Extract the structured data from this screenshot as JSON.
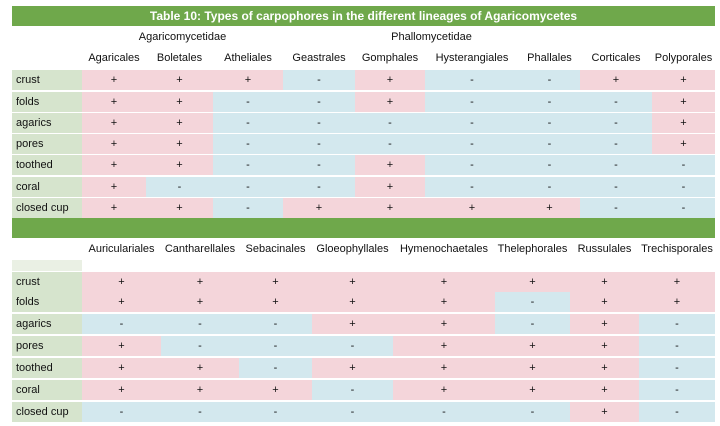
{
  "title": "Table 10: Types of carpophores in the different lineages of Agaricomycetes",
  "table1": {
    "groups": [
      "Agaricomycetidae",
      "Phallomycetidae"
    ],
    "orders": [
      "Agaricales",
      "Boletales",
      "Atheliales",
      "Geastrales",
      "Gomphales",
      "Hysterangiales",
      "Phallales",
      "Corticales",
      "Polyporales"
    ],
    "rows": [
      {
        "label": "crust",
        "values": [
          "+",
          "+",
          "+",
          "-",
          "+",
          "-",
          "-",
          "+",
          "+"
        ]
      },
      {
        "label": "folds",
        "values": [
          "+",
          "+",
          "-",
          "-",
          "+",
          "-",
          "-",
          "-",
          "+"
        ]
      },
      {
        "label": "agarics",
        "values": [
          "+",
          "+",
          "-",
          "-",
          "-",
          "-",
          "-",
          "-",
          "+"
        ]
      },
      {
        "label": "pores",
        "values": [
          "+",
          "+",
          "-",
          "-",
          "-",
          "-",
          "-",
          "-",
          "+"
        ]
      },
      {
        "label": "toothed",
        "values": [
          "+",
          "+",
          "-",
          "-",
          "+",
          "-",
          "-",
          "-",
          "-"
        ]
      },
      {
        "label": "coral",
        "values": [
          "+",
          "-",
          "-",
          "-",
          "+",
          "-",
          "-",
          "-",
          "-"
        ]
      },
      {
        "label": "closed cup",
        "values": [
          "+",
          "+",
          "-",
          "+",
          "+",
          "+",
          "+",
          "-",
          "-"
        ]
      }
    ]
  },
  "table2": {
    "orders": [
      "Auriculariales",
      "Cantharellales",
      "Sebacinales",
      "Gloeophyllales",
      "Hymenochaetales",
      "Thelephorales",
      "Russulales",
      "Trechisporales"
    ],
    "rows": [
      {
        "label": "crust",
        "values": [
          "+",
          "+",
          "+",
          "+",
          "+",
          "+",
          "+",
          "+"
        ]
      },
      {
        "label": "folds",
        "values": [
          "+",
          "+",
          "+",
          "+",
          "+",
          "-",
          "+",
          "+"
        ]
      },
      {
        "label": "agarics",
        "values": [
          "-",
          "-",
          "-",
          "+",
          "+",
          "-",
          "+",
          "-"
        ]
      },
      {
        "label": "pores",
        "values": [
          "+",
          "-",
          "-",
          "-",
          "+",
          "+",
          "+",
          "-"
        ]
      },
      {
        "label": "toothed",
        "values": [
          "+",
          "+",
          "-",
          "+",
          "+",
          "+",
          "+",
          "-"
        ]
      },
      {
        "label": "coral",
        "values": [
          "+",
          "+",
          "+",
          "-",
          "+",
          "+",
          "+",
          "-"
        ]
      },
      {
        "label": "closed cup",
        "values": [
          "-",
          "-",
          "-",
          "-",
          "-",
          "-",
          "+",
          "-"
        ]
      }
    ]
  },
  "colors": {
    "header_green": "#6fa84b",
    "positive_pink": "#f4d5da",
    "negative_blue": "#d3e8ee",
    "label_green": "#d6e4cd"
  }
}
